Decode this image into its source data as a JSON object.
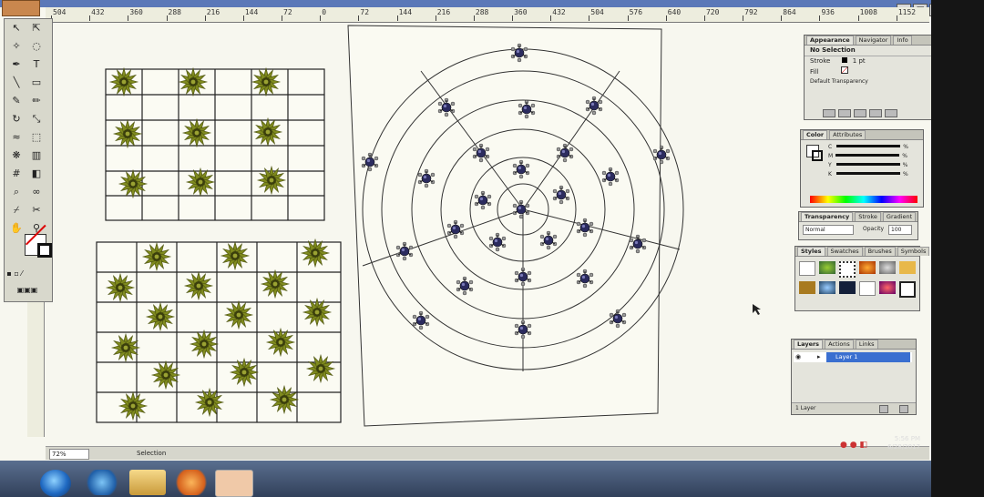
{
  "app": {
    "ruler_ticks": [
      "504",
      "432",
      "360",
      "288",
      "216",
      "144",
      "72",
      "0",
      "72",
      "144",
      "216",
      "288",
      "360",
      "432",
      "504",
      "576",
      "640",
      "720",
      "792",
      "864",
      "936",
      "1008",
      "1152"
    ]
  },
  "panels": {
    "appearance": {
      "tabs": [
        "Appearance",
        "Navigator",
        "Info"
      ],
      "selection": "No Selection",
      "stroke_label": "Stroke",
      "stroke_value": "1 pt",
      "fill_label": "Fill",
      "default_label": "Default Transparency"
    },
    "color": {
      "tabs": [
        "Color",
        "Attributes"
      ],
      "channels": [
        "C",
        "M",
        "Y",
        "K"
      ],
      "unit": "%"
    },
    "transparency": {
      "tabs": [
        "Transparency",
        "Stroke",
        "Gradient"
      ],
      "mode": "Normal",
      "opacity_label": "Opacity",
      "opacity_value": "100"
    },
    "styles": {
      "tabs": [
        "Styles",
        "Swatches",
        "Brushes",
        "Symbols"
      ]
    },
    "layers": {
      "tabs": [
        "Layers",
        "Actions",
        "Links"
      ],
      "layer_name": "Layer 1",
      "count": "1 Layer"
    }
  },
  "status": {
    "zoom": "72%",
    "tool_label": "Selection"
  },
  "clock": {
    "time": "5:56 PM",
    "date": "6/28/2017"
  },
  "colors": {
    "accent": "#5b78b8",
    "flower": "#7f8a1e",
    "flower_center": "#3b3f0c",
    "dot": "#3a3a6a"
  }
}
